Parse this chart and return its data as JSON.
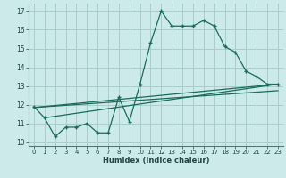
{
  "xlabel": "Humidex (Indice chaleur)",
  "bg_color": "#cceaea",
  "grid_color": "#aacccc",
  "line_color": "#1a6b5a",
  "xlim": [
    -0.5,
    23.5
  ],
  "ylim": [
    9.8,
    17.4
  ],
  "xticks": [
    0,
    1,
    2,
    3,
    4,
    5,
    6,
    7,
    8,
    9,
    10,
    11,
    12,
    13,
    14,
    15,
    16,
    17,
    18,
    19,
    20,
    21,
    22,
    23
  ],
  "yticks": [
    10,
    11,
    12,
    13,
    14,
    15,
    16,
    17
  ],
  "main_x": [
    0,
    1,
    2,
    3,
    4,
    5,
    6,
    7,
    8,
    9,
    10,
    11,
    12,
    13,
    14,
    15,
    16,
    17,
    18,
    19,
    20,
    21,
    22,
    23
  ],
  "main_y": [
    11.9,
    11.3,
    10.3,
    10.8,
    10.8,
    11.0,
    10.5,
    10.5,
    12.4,
    11.1,
    13.1,
    15.3,
    17.0,
    16.2,
    16.2,
    16.2,
    16.5,
    16.2,
    15.1,
    14.8,
    13.8,
    13.5,
    13.1,
    13.1
  ],
  "line1_x": [
    0,
    23
  ],
  "line1_y": [
    11.85,
    13.1
  ],
  "line2_x": [
    1,
    23
  ],
  "line2_y": [
    11.3,
    13.1
  ],
  "line3_x": [
    0,
    23
  ],
  "line3_y": [
    11.85,
    12.75
  ]
}
